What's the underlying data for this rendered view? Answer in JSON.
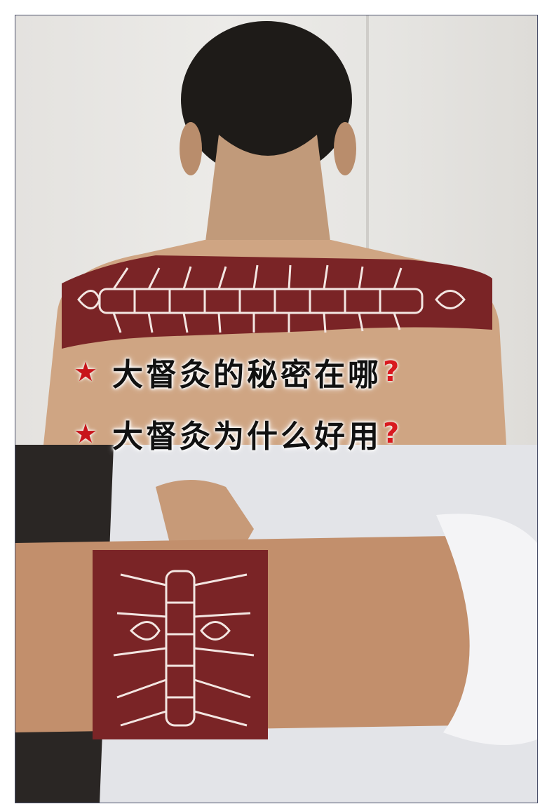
{
  "questions": [
    {
      "star": "★",
      "text": "大督灸的秘密在哪",
      "mark": "?"
    },
    {
      "star": "★",
      "text": "大督灸为什么好用",
      "mark": "?"
    }
  ],
  "colors": {
    "star": "#c8141a",
    "question_mark": "#d8191f",
    "tape": "#7a2426",
    "border": "#4a4f6a"
  }
}
